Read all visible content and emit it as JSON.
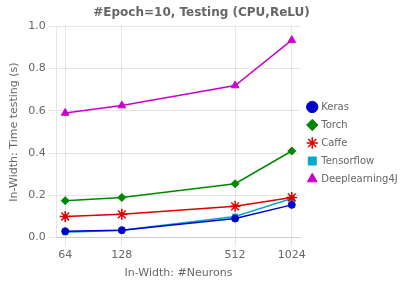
{
  "chart_data": {
    "type": "line",
    "title": "#Epoch=10, Testing (CPU,ReLU)",
    "xlabel": "In-Width: #Neurons",
    "ylabel": "In-Width: Time testing (s)",
    "x": [
      64,
      128,
      512,
      1024
    ],
    "log": "x",
    "xlim": [
      57.68,
      1136.2
    ],
    "xticks": [
      64,
      128,
      512,
      1024
    ],
    "ylim": [
      0,
      1
    ],
    "yticks": [
      {
        "value": 0,
        "label": "0.0"
      },
      0.2,
      0.4,
      0.6,
      0.8,
      {
        "value": 1,
        "label": "1.0"
      }
    ],
    "grid": true,
    "legend": "right",
    "series": [
      {
        "name": "Keras",
        "color": "#0000cc",
        "marker": "circle",
        "values": [
          0.03,
          0.035,
          0.09,
          0.155
        ]
      },
      {
        "name": "Torch",
        "color": "#008800",
        "marker": "diamond",
        "values": [
          0.175,
          0.19,
          0.255,
          0.41
        ]
      },
      {
        "name": "Caffe",
        "color": "#dd0000",
        "marker": "star",
        "values": [
          0.1,
          0.11,
          0.148,
          0.19
        ]
      },
      {
        "name": "Tensorflow",
        "color": "#00aacc",
        "marker": "square",
        "values": [
          0.025,
          0.035,
          0.1,
          0.185
        ]
      },
      {
        "name": "Deeplearning4J",
        "color": "#cc00cc",
        "marker": "triangle",
        "values": [
          0.59,
          0.625,
          0.72,
          0.935
        ]
      }
    ]
  }
}
